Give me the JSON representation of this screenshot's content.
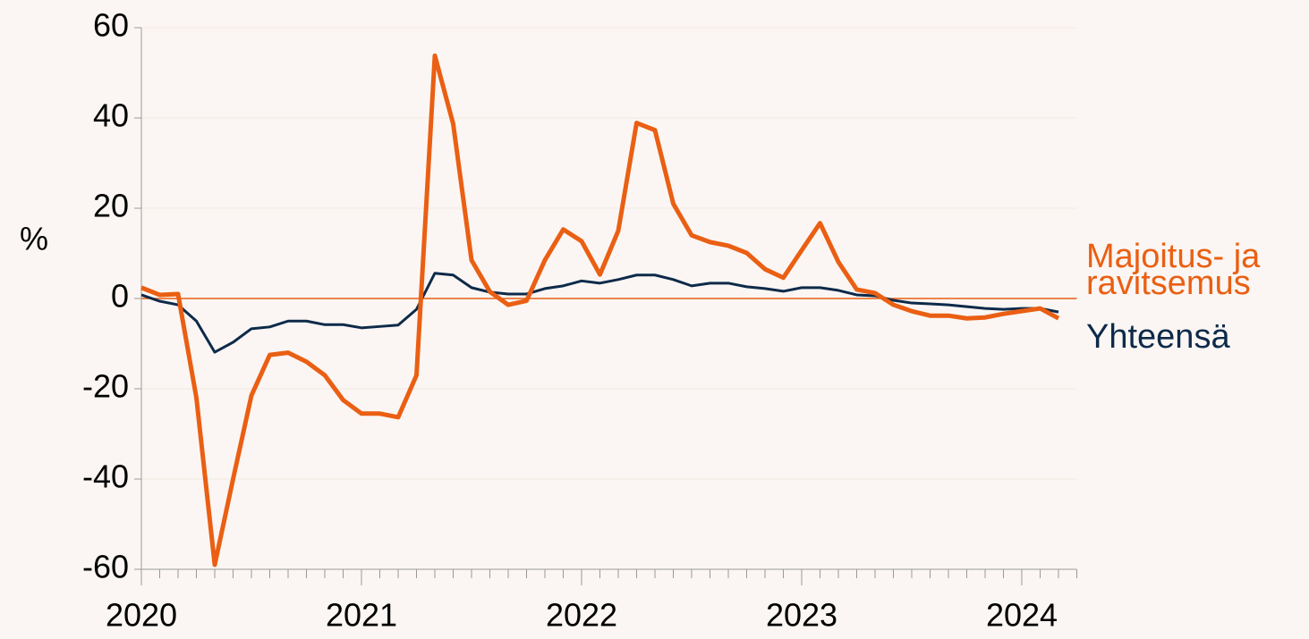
{
  "chart_data": {
    "type": "line",
    "y_label": "%",
    "categories": [
      "2020",
      null,
      null,
      null,
      null,
      null,
      null,
      null,
      null,
      null,
      null,
      null,
      "2021",
      null,
      null,
      null,
      null,
      null,
      null,
      null,
      null,
      null,
      null,
      null,
      "2022",
      null,
      null,
      null,
      null,
      null,
      null,
      null,
      null,
      null,
      null,
      null,
      "2023",
      null,
      null,
      null,
      null,
      null,
      null,
      null,
      null,
      null,
      null,
      null,
      "2024",
      null,
      null
    ],
    "series": [
      {
        "name": "Majoitus- ja ravitsemus",
        "color": "#ea5f13",
        "width": 5,
        "values": [
          2.4,
          0.8,
          1,
          -22,
          -59,
          -40,
          -21.5,
          -12.5,
          -12,
          -14,
          -17,
          -22.5,
          -25.5,
          -25.5,
          -26.3,
          -17,
          53.8,
          38.7,
          8.5,
          1.5,
          -1.4,
          -0.5,
          8.5,
          15.3,
          12.7,
          5.3,
          15,
          38.9,
          37.3,
          21,
          14,
          12.5,
          11.7,
          10.1,
          6.5,
          4.6,
          10.7,
          16.7,
          8.1,
          2,
          1.2,
          -1.4,
          -2.8,
          -3.8,
          -3.8,
          -4.4,
          -4.2,
          -3.4,
          -2.8,
          -2.2,
          -4.4
        ]
      },
      {
        "name": "Yhteensä",
        "color": "#0e2a4a",
        "width": 3,
        "values": [
          0.8,
          -0.6,
          -1.4,
          -5,
          -11.9,
          -9.7,
          -6.7,
          -6.3,
          -5,
          -5,
          -5.8,
          -5.8,
          -6.5,
          -6.2,
          -5.9,
          -2.4,
          5.6,
          5.2,
          2.4,
          1.4,
          1,
          1,
          2.2,
          2.8,
          3.9,
          3.4,
          4.2,
          5.2,
          5.2,
          4.2,
          2.8,
          3.4,
          3.4,
          2.6,
          2.2,
          1.6,
          2.4,
          2.4,
          1.8,
          0.8,
          0.6,
          -0.4,
          -1,
          -1.2,
          -1.4,
          -1.8,
          -2.2,
          -2.4,
          -2.2,
          -2.2,
          -3
        ]
      }
    ],
    "ylim": [
      -60,
      60
    ],
    "yticks": [
      -60,
      -40,
      -20,
      0,
      20,
      40,
      60
    ],
    "grid": true,
    "zero_line_color": "#ea5f13"
  }
}
